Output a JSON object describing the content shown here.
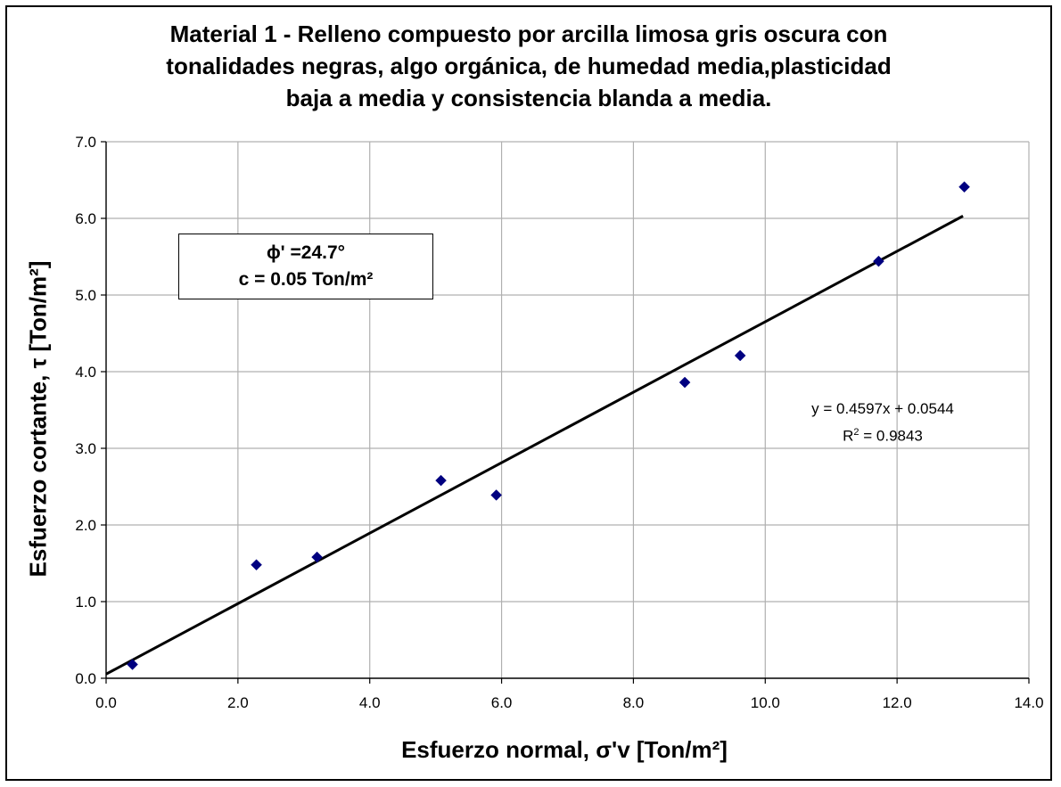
{
  "chart_data": {
    "type": "scatter",
    "title_lines": [
      "Material 1 - Relleno compuesto por arcilla limosa gris oscura con",
      "tonalidades negras, algo orgánica, de humedad media,plasticidad",
      "baja a media y consistencia blanda a media."
    ],
    "xlabel": "Esfuerzo normal, σ'v [Ton/m²]",
    "ylabel": "Esfuerzo cortante, τ [Ton/m²]",
    "xlim": [
      0,
      14
    ],
    "ylim": [
      0,
      7
    ],
    "x_ticks": [
      "0.0",
      "2.0",
      "4.0",
      "6.0",
      "8.0",
      "10.0",
      "12.0",
      "14.0"
    ],
    "y_ticks": [
      "0.0",
      "1.0",
      "2.0",
      "3.0",
      "4.0",
      "5.0",
      "6.0",
      "7.0"
    ],
    "grid": true,
    "marker_color": "#000080",
    "series": [
      {
        "x": [
          0.4,
          2.28,
          3.2,
          5.08,
          5.92,
          8.78,
          9.62,
          11.72,
          13.02
        ],
        "y": [
          0.18,
          1.48,
          1.58,
          2.58,
          2.39,
          3.86,
          4.21,
          5.44,
          6.41
        ]
      }
    ],
    "trendline": {
      "slope": 0.4597,
      "intercept": 0.0544,
      "x_range": [
        0,
        13.0
      ]
    },
    "annotation_box": {
      "line1": "ϕ' =24.7°",
      "line2": "c = 0.05 Ton/m²"
    },
    "equation": {
      "line1": "y = 0.4597x + 0.0544",
      "r2_prefix": "R",
      "r2_sup": "2",
      "r2_value": " = 0.9843"
    }
  }
}
